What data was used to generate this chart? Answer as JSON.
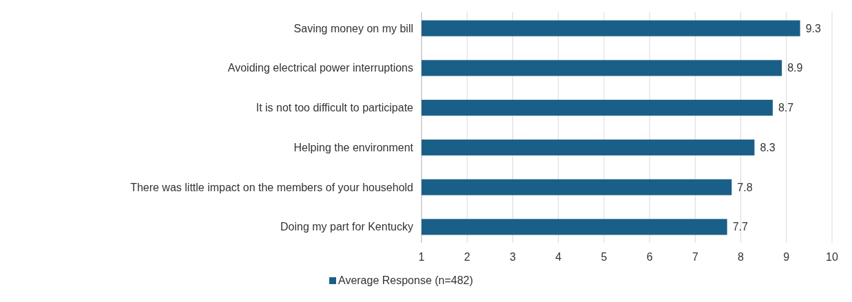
{
  "chart_data": {
    "type": "bar",
    "orientation": "horizontal",
    "categories": [
      "Saving money on my bill",
      "Avoiding electrical power interruptions",
      "It is not too difficult to participate",
      "Helping the environment",
      "There was little impact on the members of your household",
      "Doing my part for Kentucky"
    ],
    "series": [
      {
        "name": "Average Response (n=482)",
        "color": "#1a5f87",
        "values": [
          9.3,
          8.9,
          8.7,
          8.3,
          7.8,
          7.7
        ]
      }
    ],
    "xlim": [
      1,
      10
    ],
    "xticks": [
      1,
      2,
      3,
      4,
      5,
      6,
      7,
      8,
      9,
      10
    ],
    "grid": "x",
    "legend": "bottom",
    "data_labels": true
  }
}
